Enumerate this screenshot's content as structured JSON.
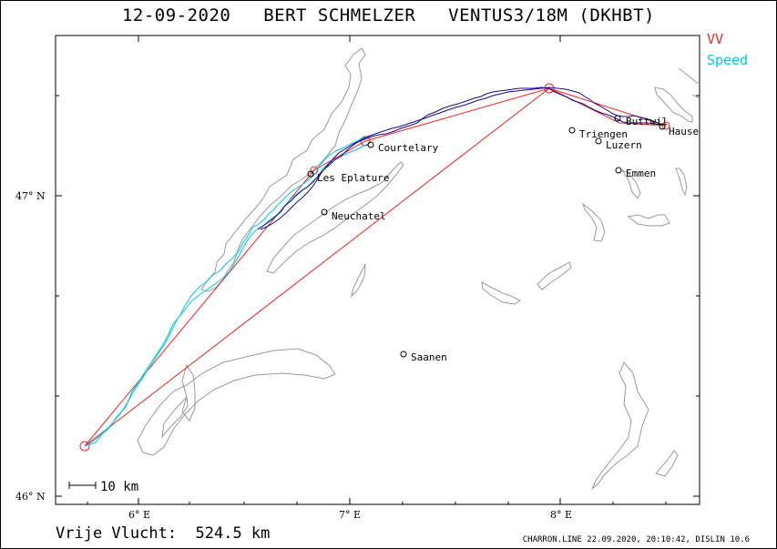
{
  "header": {
    "title": "12-09-2020   BERT SCHMELZER   VENTUS3/18M (DKHBT)"
  },
  "legend": {
    "vv_label": "VV",
    "speed_label": "Speed",
    "vv_color": "#ff2020",
    "speed_color": "#00c8e6",
    "track_color": "#1a0a8c"
  },
  "axes": {
    "x_ticks": [
      "6° E",
      "7° E",
      "8° E"
    ],
    "y_ticks": [
      "47° N",
      "46° N"
    ]
  },
  "scale_bar": {
    "label": "10 km"
  },
  "places": [
    {
      "name": "Buttwil"
    },
    {
      "name": "Hause"
    },
    {
      "name": "Triengen"
    },
    {
      "name": "Luzern"
    },
    {
      "name": "Courtelary"
    },
    {
      "name": "Les Eplature"
    },
    {
      "name": "Emmen"
    },
    {
      "name": "Neuchatel"
    },
    {
      "name": "Saanen"
    }
  ],
  "footer": {
    "distance_text": "Vrije Vlucht:  524.5 km",
    "credits": "CHARRON.LINE 22.09.2020, 20:10:42, DISLIN 10.6"
  }
}
